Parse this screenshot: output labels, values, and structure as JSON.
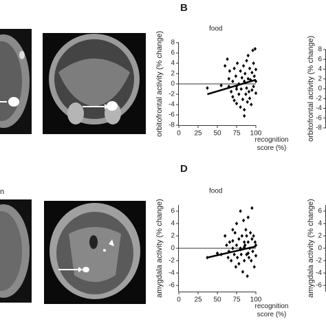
{
  "chart_data": [
    {
      "type": "scatter",
      "panel_label": "B",
      "title": "food",
      "ylabel": "orbitofrontal activity (% change)",
      "xlabel": "recognition score (%)",
      "color": "#000000",
      "x": [
        37,
        55,
        60,
        63,
        65,
        66,
        68,
        70,
        70,
        72,
        72,
        74,
        75,
        75,
        76,
        78,
        78,
        80,
        80,
        81,
        82,
        83,
        84,
        85,
        85,
        86,
        87,
        88,
        88,
        89,
        90,
        90,
        91,
        92,
        92,
        93,
        94,
        95,
        95,
        96,
        97,
        97,
        98,
        99,
        100,
        100,
        100,
        65,
        75,
        85
      ],
      "y": [
        -0.8,
        -0.3,
        3.5,
        4.8,
        1,
        2.5,
        -1.5,
        0.5,
        -2.5,
        3,
        -3.2,
        1.5,
        -0.5,
        -3.8,
        4,
        0,
        -2,
        2.5,
        -4.5,
        -1,
        1.2,
        -3,
        3.5,
        0.5,
        -5,
        2,
        -2,
        -0.8,
        4.5,
        -3.5,
        1,
        5.5,
        -1.5,
        3,
        -2.8,
        0.8,
        -4,
        2.2,
        -1.2,
        6.5,
        4,
        -0.5,
        1.5,
        6.8,
        2.8,
        -1.8,
        0.5,
        -0.5,
        -1,
        -6.2
      ],
      "fit": {
        "x": [
          37,
          100
        ],
        "y": [
          -2,
          0.8
        ]
      },
      "xlim": [
        0,
        100
      ],
      "xticks": [
        0,
        25,
        50,
        75,
        100
      ],
      "ylim": [
        -8,
        8
      ],
      "yticks": [
        -8,
        -6,
        -4,
        -2,
        0,
        2,
        4,
        6,
        8
      ]
    },
    {
      "type": "scatter",
      "ylabel": "orbitofrontal activity (% change)",
      "ylim": [
        -8,
        8
      ],
      "yticks": [
        -8,
        -6,
        -4,
        -2,
        0,
        2,
        4,
        6,
        8
      ]
    },
    {
      "type": "scatter",
      "panel_label": "D",
      "title": "food",
      "ylabel": "amygdala activity (% change)",
      "xlabel": "recognition score (%)",
      "color": "#000000",
      "x": [
        37,
        50,
        55,
        60,
        62,
        64,
        65,
        66,
        68,
        70,
        70,
        72,
        73,
        74,
        75,
        75,
        76,
        78,
        78,
        80,
        80,
        81,
        82,
        83,
        84,
        85,
        85,
        86,
        87,
        88,
        88,
        89,
        90,
        90,
        91,
        92,
        93,
        94,
        95,
        95,
        96,
        97,
        98,
        99,
        100,
        100,
        70,
        80,
        90,
        85
      ],
      "y": [
        -1.5,
        -0.8,
        -1,
        2,
        0.5,
        -1.5,
        -0.5,
        1,
        -2,
        3,
        0,
        -1,
        2.5,
        -3,
        4,
        0.5,
        -1.5,
        1.5,
        -2.5,
        6,
        0,
        -1,
        2,
        -3.8,
        4.5,
        1,
        -2,
        0.5,
        3,
        -1,
        2,
        -4.5,
        1,
        5,
        -1.5,
        0,
        2.5,
        -2,
        1.5,
        6.5,
        -0.5,
        2,
        -3,
        1,
        0.5,
        -1.2,
        1.2,
        -0.2,
        -0.8,
        0.2
      ],
      "fit": {
        "x": [
          37,
          100
        ],
        "y": [
          -1.5,
          0.3
        ]
      },
      "xlim": [
        0,
        100
      ],
      "xticks": [
        0,
        25,
        50,
        75,
        100
      ],
      "ylim": [
        -7,
        7
      ],
      "yticks": [
        -6,
        -4,
        -2,
        0,
        2,
        4,
        6
      ]
    },
    {
      "type": "scatter",
      "ylabel": "amygdala activity (% change)",
      "ylim": [
        -7,
        7
      ],
      "yticks": [
        -6,
        -4,
        -2,
        0,
        2,
        4,
        6
      ]
    }
  ],
  "fragments": {
    "panel_c": "n"
  }
}
